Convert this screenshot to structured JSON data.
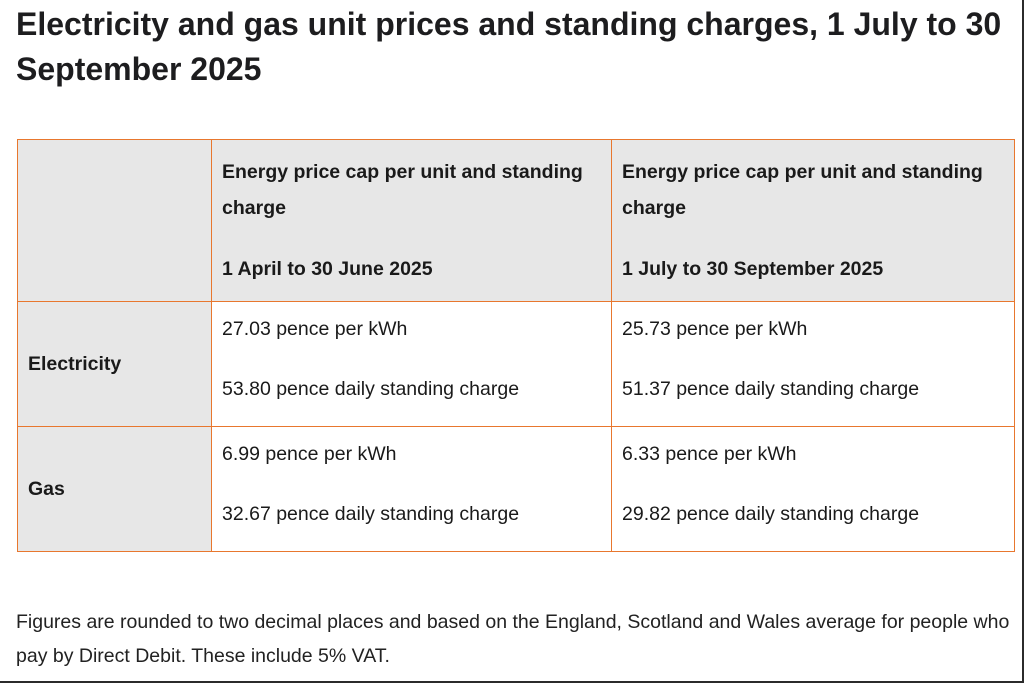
{
  "title": "Electricity and gas unit prices and standing charges, 1 July to 30 September 2025",
  "table": {
    "columns": [
      {
        "heading": "Energy price cap per unit and standing charge",
        "period": "1 April to 30 June 2025"
      },
      {
        "heading": "Energy price cap per unit and standing charge",
        "period": "1 July to 30 September 2025"
      }
    ],
    "rows": [
      {
        "label": "Electricity",
        "cells": [
          {
            "unit_rate": "27.03 pence per kWh",
            "standing_charge": "53.80 pence daily standing charge"
          },
          {
            "unit_rate": "25.73 pence per kWh",
            "standing_charge": "51.37 pence daily standing charge"
          }
        ]
      },
      {
        "label": "Gas",
        "cells": [
          {
            "unit_rate": "6.99 pence per kWh",
            "standing_charge": "32.67 pence daily standing charge"
          },
          {
            "unit_rate": "6.33 pence per kWh",
            "standing_charge": "29.82 pence daily standing charge"
          }
        ]
      }
    ]
  },
  "footnote": "Figures are rounded to two decimal places and based on the England, Scotland and Wales average for people who pay by Direct Debit. These include 5% VAT.",
  "colors": {
    "table_border": "#e8772e",
    "header_background": "#e7e7e7",
    "text": "#1a1a1a"
  }
}
